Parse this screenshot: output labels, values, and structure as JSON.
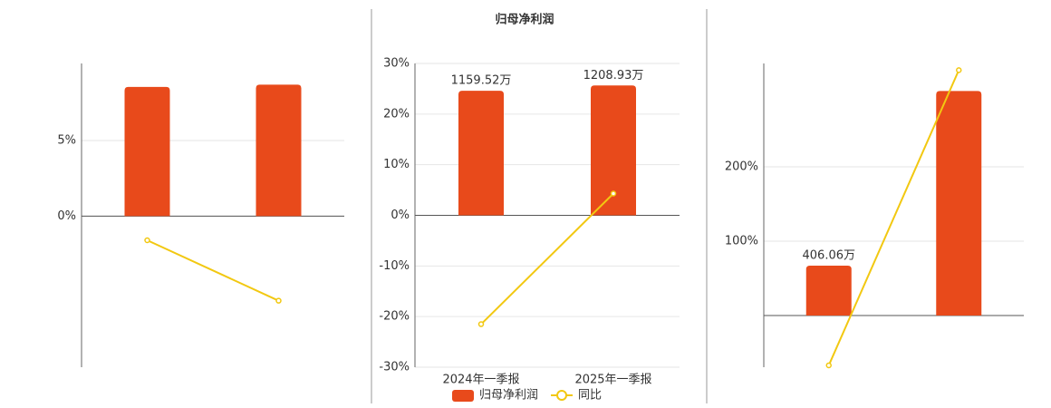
{
  "chart_data": [
    {
      "type": "bar_line",
      "categories": [
        null,
        null
      ],
      "series": [
        {
          "name": null,
          "kind": "bar",
          "color": "#e84a1b",
          "values": [
            8.55,
            8.7
          ]
        },
        {
          "name": null,
          "kind": "line",
          "color": "#f2c811",
          "values": [
            -1.6,
            -5.6
          ]
        }
      ],
      "ylim": [
        -10,
        10.1
      ],
      "yticks": [
        {
          "value": 0,
          "label": "0%"
        },
        {
          "value": 5,
          "label": "5%"
        }
      ]
    },
    {
      "type": "bar_line",
      "title": "归母净利润",
      "categories": [
        "2024年一季报",
        "2025年一季报"
      ],
      "series": [
        {
          "name": "归母净利润",
          "kind": "bar",
          "axis": "y2",
          "color": "#e84a1b",
          "values": [
            1159.52,
            1208.93
          ],
          "value_labels": [
            "1159.52万",
            "1208.93万"
          ]
        },
        {
          "name": "同比",
          "kind": "line",
          "color": "#f2c811",
          "values": [
            -21.5,
            4.3
          ]
        }
      ],
      "ylim": [
        -30,
        30
      ],
      "y2lim": [
        -1414,
        1414
      ],
      "yticks": [
        {
          "value": -30,
          "label": "-30%"
        },
        {
          "value": -20,
          "label": "-20%"
        },
        {
          "value": -10,
          "label": "-10%"
        },
        {
          "value": 0,
          "label": "0%"
        },
        {
          "value": 10,
          "label": "10%"
        },
        {
          "value": 20,
          "label": "20%"
        },
        {
          "value": 30,
          "label": "30%"
        }
      ],
      "legend": "bottom"
    },
    {
      "type": "bar_line",
      "categories": [
        null,
        null
      ],
      "series": [
        {
          "name": null,
          "kind": "bar",
          "axis": "y2",
          "color": "#e84a1b",
          "values": [
            406.06,
            1830
          ],
          "value_labels": [
            "406.06万",
            null
          ]
        },
        {
          "name": null,
          "kind": "line",
          "color": "#f2c811",
          "values": [
            -67,
            330
          ]
        }
      ],
      "ylim": [
        -69.5,
        339
      ],
      "y2lim": [
        -421,
        2054
      ],
      "yticks": [
        {
          "value": 100,
          "label": "100%"
        },
        {
          "value": 200,
          "label": "200%"
        }
      ]
    }
  ]
}
